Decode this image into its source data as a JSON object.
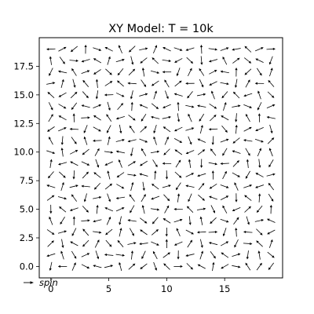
{
  "chart_data": {
    "type": "quiver",
    "title": "XY Model: T = 10k",
    "xlabel": "",
    "ylabel": "",
    "xlim": [
      -1,
      20
    ],
    "ylim": [
      -1,
      20
    ],
    "xticks": [
      0,
      5,
      10,
      15
    ],
    "yticks": [
      0.0,
      2.5,
      5.0,
      7.5,
      10.0,
      12.5,
      15.0,
      17.5
    ],
    "ytick_labels": [
      "0.0",
      "2.5",
      "5.0",
      "7.5",
      "10.0",
      "12.5",
      "15.0",
      "17.5"
    ],
    "grid": false,
    "lattice": {
      "nx": 20,
      "ny": 20,
      "x0": 0,
      "y0": 0,
      "step": 1
    },
    "angles_deg": [
      [
        258,
        180,
        67,
        333,
        165,
        14,
        105,
        42,
        218,
        290,
        136,
        0,
        315,
        152,
        81,
        210,
        349,
        123,
        54,
        233
      ],
      [
        197,
        108,
        301,
        24,
        288,
        174,
        352,
        83,
        245,
        118,
        36,
        269,
        193,
        72,
        307,
        145,
        18,
        262,
        99,
        321
      ],
      [
        44,
        280,
        152,
        226,
        63,
        311,
        130,
        12,
        187,
        336,
        91,
        204,
        57,
        283,
        166,
        29,
        244,
        356,
        137,
        71
      ],
      [
        325,
        16,
        243,
        131,
        352,
        219,
        77,
        299,
        145,
        40,
        268,
        113,
        332,
        184,
        3,
        251,
        94,
        176,
        315,
        208
      ],
      [
        112,
        238,
        89,
        5,
        194,
        66,
        258,
        171,
        323,
        229,
        147,
        18,
        276,
        101,
        224,
        341,
        53,
        287,
        12,
        156
      ],
      [
        271,
        141,
        199,
        313,
        84,
        157,
        24,
        240,
        103,
        352,
        61,
        178,
        134,
        9,
        296,
        118,
        203,
        43,
        231,
        88
      ],
      [
        36,
        345,
        126,
        255,
        11,
        290,
        189,
        127,
        59,
        200,
        313,
        82,
        247,
        319,
        160,
        27,
        271,
        142,
        86,
        302
      ],
      [
        163,
        73,
        14,
        174,
        227,
        39,
        330,
        75,
        279,
        143,
        16,
        236,
        168,
        51,
        213,
        340,
        114,
        19,
        199,
        127
      ],
      [
        229,
        317,
        266,
        47,
        142,
        104,
        215,
        352,
        164,
        85,
        272,
        318,
        25,
        197,
        92,
        63,
        331,
        240,
        152,
        14
      ],
      [
        81,
        196,
        153,
        335,
        290,
        205,
        112,
        31,
        212,
        302,
        179,
        57,
        99,
        269,
        349,
        183,
        46,
        96,
        277,
        239
      ],
      [
        342,
        98,
        27,
        219,
        61,
        352,
        168,
        258,
        121,
        10,
        225,
        145,
        203,
        37,
        128,
        239,
        162,
        301,
        67,
        111
      ],
      [
        118,
        265,
        306,
        109,
        183,
        77,
        14,
        194,
        338,
        109,
        66,
        331,
        292,
        156,
        266,
        20,
        219,
        171,
        341,
        45
      ],
      [
        214,
        23,
        177,
        248,
        331,
        243,
        280,
        125,
        43,
        253,
        144,
        206,
        17,
        76,
        183,
        310,
        85,
        28,
        203,
        286
      ],
      [
        59,
        151,
        92,
        3,
        147,
        124,
        196,
        322,
        237,
        166,
        12,
        279,
        114,
        238,
        44,
        150,
        265,
        119,
        92,
        169
      ],
      [
        296,
        330,
        233,
        165,
        22,
        286,
        49,
        87,
        157,
        321,
        203,
        93,
        348,
        169,
        327,
        72,
        11,
        339,
        244,
        23
      ],
      [
        138,
        209,
        44,
        312,
        261,
        182,
        335,
        257,
        16,
        72,
        290,
        163,
        231,
        11,
        111,
        229,
        134,
        198,
        109,
        316
      ],
      [
        11,
        75,
        285,
        130,
        96,
        33,
        139,
        176,
        305,
        214,
        121,
        39,
        181,
        295,
        206,
        350,
        260,
        61,
        179,
        131
      ],
      [
        244,
        168,
        123,
        20,
        214,
        317,
        231,
        45,
        99,
        345,
        180,
        250,
        64,
        123,
        27,
        170,
        89,
        223,
        303,
        72
      ],
      [
        98,
        306,
        355,
        197,
        150,
        73,
        16,
        284,
        219,
        136,
        352,
        208,
        317,
        275,
        196,
        117,
        37,
        321,
        154,
        249
      ],
      [
        183,
        28,
        219,
        89,
        341,
        153,
        113,
        224,
        12,
        67,
        155,
        341,
        197,
        93,
        352,
        20,
        190,
        137,
        23,
        3
      ]
    ],
    "legend": {
      "label": "spin",
      "location": "lower-left",
      "style": "italic"
    },
    "colors": {
      "arrow": "#000000",
      "axes": "#000000",
      "background": "#ffffff"
    }
  }
}
